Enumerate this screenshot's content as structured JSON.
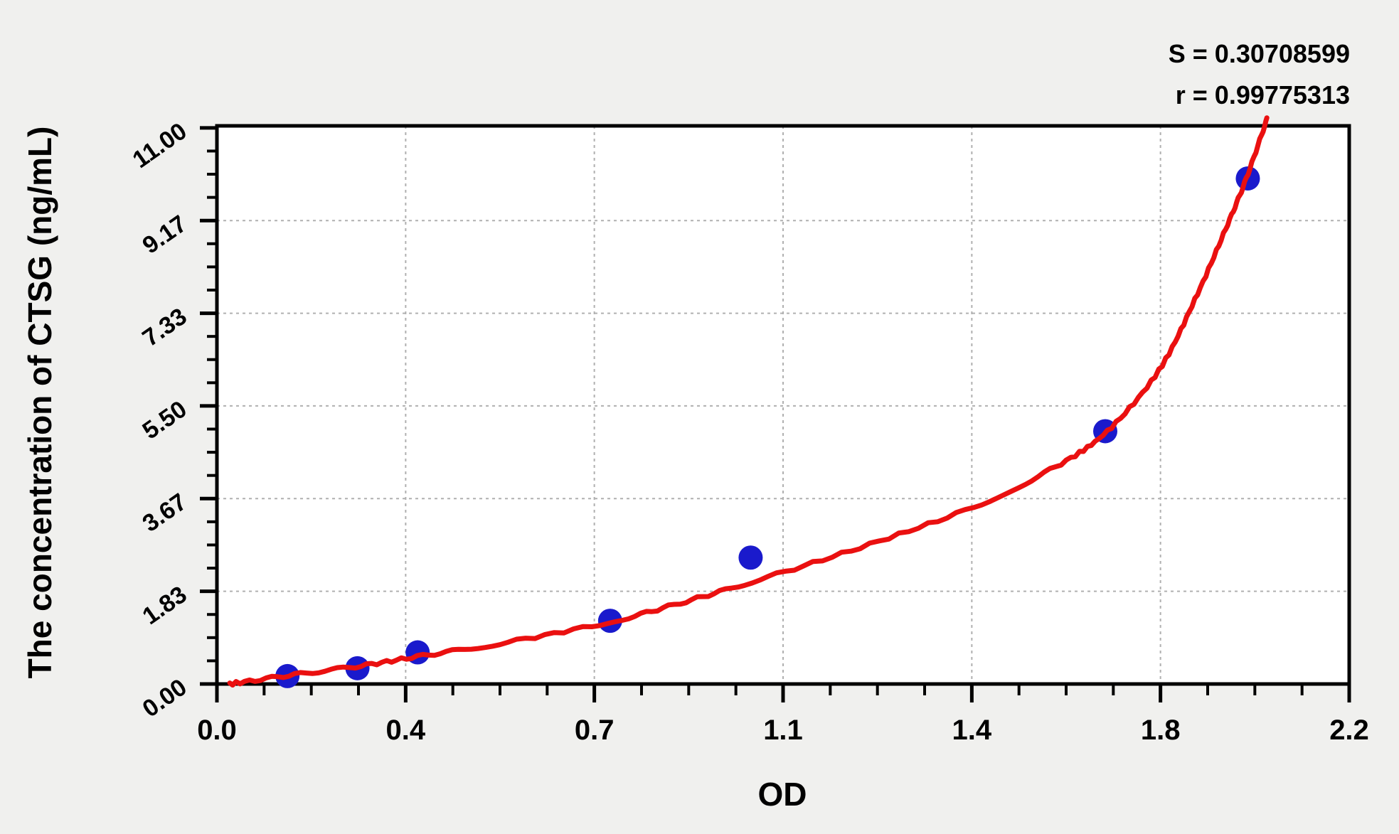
{
  "stats": {
    "s": "S = 0.30708599",
    "r": "r = 0.99775313"
  },
  "chart_data": {
    "type": "scatter",
    "title": "",
    "xlabel": "OD",
    "ylabel": "The concentration of CTSG (ng/mL)",
    "xlim": [
      0,
      2.2
    ],
    "ylim": [
      0,
      11.04
    ],
    "grid": {
      "show": true,
      "style": "dashed",
      "on": "major-ticks"
    },
    "legend_position": "none",
    "x_ticks": [
      {
        "value": 0.0,
        "label": "0.0"
      },
      {
        "value": 0.3667,
        "label": "0.4"
      },
      {
        "value": 0.7333,
        "label": "0.7"
      },
      {
        "value": 1.1,
        "label": "1.1"
      },
      {
        "value": 1.4667,
        "label": "1.4"
      },
      {
        "value": 1.8333,
        "label": "1.8"
      },
      {
        "value": 2.2,
        "label": "2.2"
      }
    ],
    "y_ticks": [
      {
        "value": 0.0,
        "label": "0.00"
      },
      {
        "value": 1.8333,
        "label": "1.83"
      },
      {
        "value": 3.6667,
        "label": "3.67"
      },
      {
        "value": 5.5,
        "label": "5.50"
      },
      {
        "value": 7.3333,
        "label": "7.33"
      },
      {
        "value": 9.1667,
        "label": "9.17"
      },
      {
        "value": 11.0,
        "label": "11.00"
      }
    ],
    "minor_divisions_per_major": 4,
    "series": [
      {
        "name": "standard-points",
        "type": "scatter",
        "color": "#1a1acc",
        "marker_radius_px": 17,
        "points": [
          {
            "od": 0.137,
            "concentration": 0.156
          },
          {
            "od": 0.273,
            "concentration": 0.312
          },
          {
            "od": 0.39,
            "concentration": 0.625
          },
          {
            "od": 0.764,
            "concentration": 1.25
          },
          {
            "od": 1.037,
            "concentration": 2.5
          },
          {
            "od": 1.726,
            "concentration": 5.0
          },
          {
            "od": 2.003,
            "concentration": 10.0
          }
        ]
      },
      {
        "name": "fitted-curve",
        "type": "line",
        "color": "#ea1010",
        "stroke_width_px": 7,
        "points": [
          [
            0.025,
            0.0
          ],
          [
            0.14,
            0.17
          ],
          [
            0.28,
            0.36
          ],
          [
            0.4,
            0.56
          ],
          [
            0.55,
            0.8
          ],
          [
            0.76,
            1.22
          ],
          [
            0.9,
            1.6
          ],
          [
            1.04,
            2.02
          ],
          [
            1.25,
            2.7
          ],
          [
            1.47,
            3.5
          ],
          [
            1.63,
            4.3
          ],
          [
            1.73,
            5.0
          ],
          [
            1.83,
            6.2
          ],
          [
            1.9,
            7.6
          ],
          [
            1.96,
            9.0
          ],
          [
            2.0,
            10.0
          ],
          [
            2.04,
            11.17
          ]
        ]
      }
    ],
    "colors": {
      "page_background": "#f0f0ee",
      "plot_background": "#ffffff",
      "axis": "#000000",
      "grid": "#b0b0b0",
      "point": "#1a1acc",
      "curve": "#ea1010"
    }
  }
}
